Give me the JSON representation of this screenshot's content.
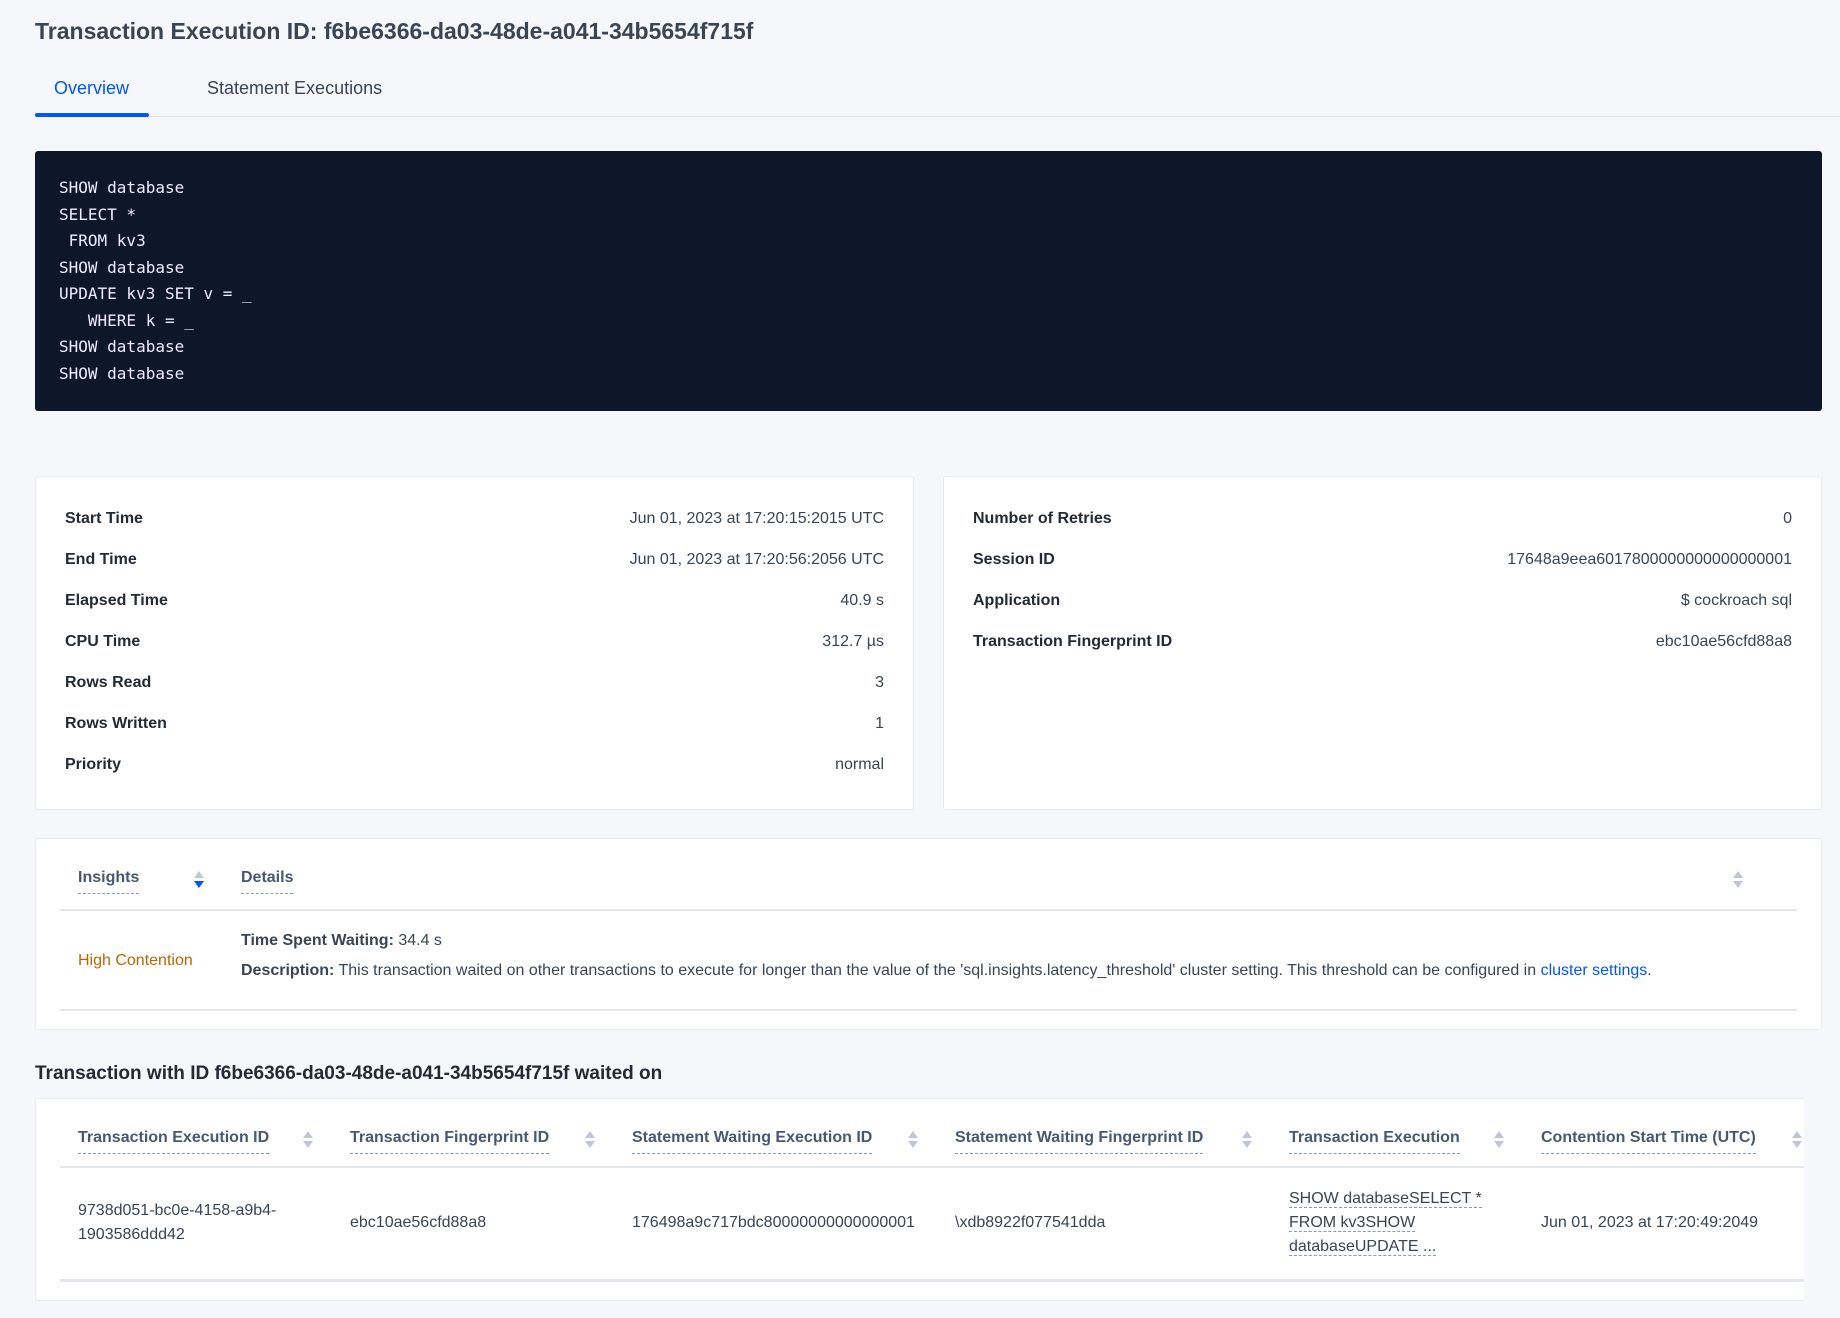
{
  "title": "Transaction Execution ID: f6be6366-da03-48de-a041-34b5654f715f",
  "tabs": [
    {
      "label": "Overview",
      "active": true
    },
    {
      "label": "Statement Executions",
      "active": false
    }
  ],
  "sql": "SHOW database\nSELECT *\n FROM kv3\nSHOW database\nUPDATE kv3 SET v = _\n   WHERE k = _\nSHOW database\nSHOW database",
  "summary_left": [
    {
      "label": "Start Time",
      "value": "Jun 01, 2023 at 17:20:15:2015 UTC"
    },
    {
      "label": "End Time",
      "value": "Jun 01, 2023 at 17:20:56:2056 UTC"
    },
    {
      "label": "Elapsed Time",
      "value": "40.9 s"
    },
    {
      "label": "CPU Time",
      "value": "312.7 µs"
    },
    {
      "label": "Rows Read",
      "value": "3"
    },
    {
      "label": "Rows Written",
      "value": "1"
    },
    {
      "label": "Priority",
      "value": "normal"
    }
  ],
  "summary_right": [
    {
      "label": "Number of Retries",
      "value": "0"
    },
    {
      "label": "Session ID",
      "value": "17648a9eea6017800000000000000001"
    },
    {
      "label": "Application",
      "value": "$ cockroach sql"
    },
    {
      "label": "Transaction Fingerprint ID",
      "value": "ebc10ae56cfd88a8"
    }
  ],
  "insights": {
    "headers": [
      "Insights",
      "Details"
    ],
    "row": {
      "type": "High Contention",
      "type_color": "#c06400",
      "time_label": "Time Spent Waiting:",
      "time_value": "34.4 s",
      "desc_label": "Description:",
      "desc_text": "This transaction waited on other transactions to execute for longer than the value of the 'sql.insights.latency_threshold' cluster setting. This threshold can be configured in",
      "desc_link": "cluster settings",
      "desc_end": "."
    }
  },
  "waited": {
    "heading": "Transaction with ID f6be6366-da03-48de-a041-34b5654f715f waited on",
    "headers": [
      "Transaction Execution ID",
      "Transaction Fingerprint ID",
      "Statement Waiting Execution ID",
      "Statement Waiting Fingerprint ID",
      "Transaction Execution",
      "Contention Start Time (UTC)"
    ],
    "row": {
      "txn_exec_id_1": "9738d051-bc0e-4158-a9b4-",
      "txn_exec_id_2": "1903586ddd42",
      "txn_fp": "ebc10ae56cfd88a8",
      "stmt_exec_id": "176498a9c717bdc80000000000000001",
      "stmt_fp": "\\xdb8922f077541dda",
      "txn_exec_1": "SHOW databaseSELECT *",
      "txn_exec_2": "FROM kv3SHOW",
      "txn_exec_3": "databaseUPDATE ...",
      "start": "Jun 01, 2023 at 17:20:49:2049"
    }
  }
}
